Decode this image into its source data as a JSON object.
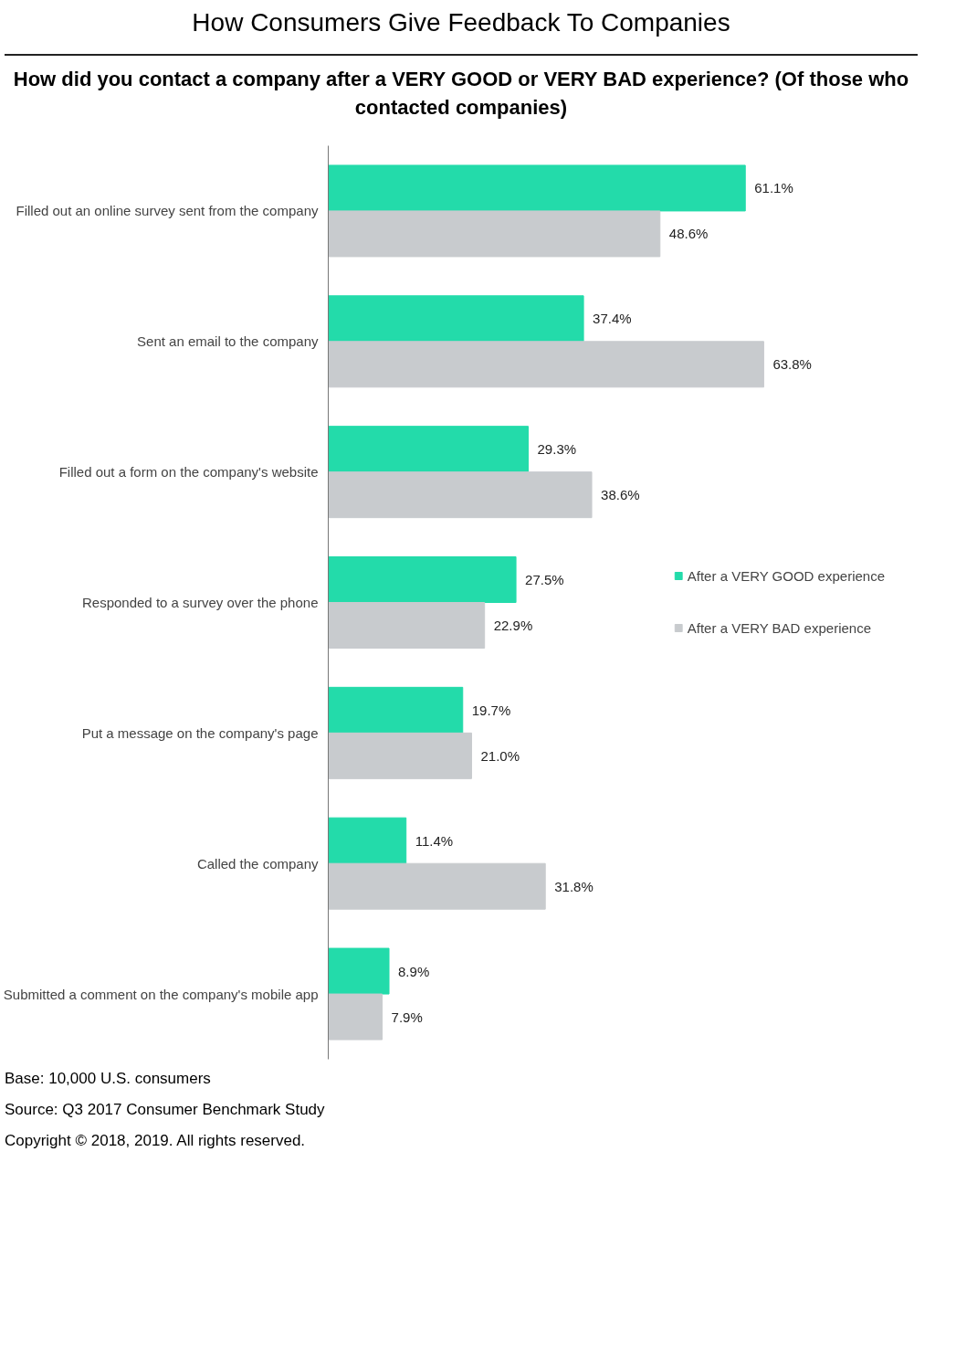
{
  "chart_data": {
    "type": "bar",
    "orientation": "horizontal",
    "title": "How Consumers Give Feedback To Companies",
    "subtitle": "How did you contact a company after a VERY GOOD or VERY BAD experience? (Of those who contacted companies)",
    "categories": [
      "Filled out an online survey sent from the company",
      "Sent an email to the company",
      "Filled out a form on the company's website",
      "Responded to a survey over the phone",
      "Put a message on the company's page",
      "Called the company",
      "Submitted a comment on the company's mobile app"
    ],
    "series": [
      {
        "name": "After a VERY GOOD experience",
        "color": "#23dbaa",
        "values": [
          61.1,
          37.4,
          29.3,
          27.5,
          19.7,
          11.4,
          8.9
        ],
        "value_labels": [
          "61.1%",
          "37.4%",
          "29.3%",
          "27.5%",
          "19.7%",
          "11.4%",
          "8.9%"
        ]
      },
      {
        "name": "After a VERY BAD experience",
        "color": "#c8cbce",
        "values": [
          48.6,
          63.8,
          38.6,
          22.9,
          21.0,
          31.8,
          7.9
        ],
        "value_labels": [
          "48.6%",
          "63.8%",
          "38.6%",
          "22.9%",
          "21.0%",
          "31.8%",
          "7.9%"
        ]
      }
    ],
    "legend": "right",
    "grid": false,
    "annotations": [
      "Base:  10,000 U.S. consumers",
      "Source:  Q3 2017 Consumer Benchmark Study",
      "Copyright © 2018, 2019. All rights reserved."
    ]
  }
}
